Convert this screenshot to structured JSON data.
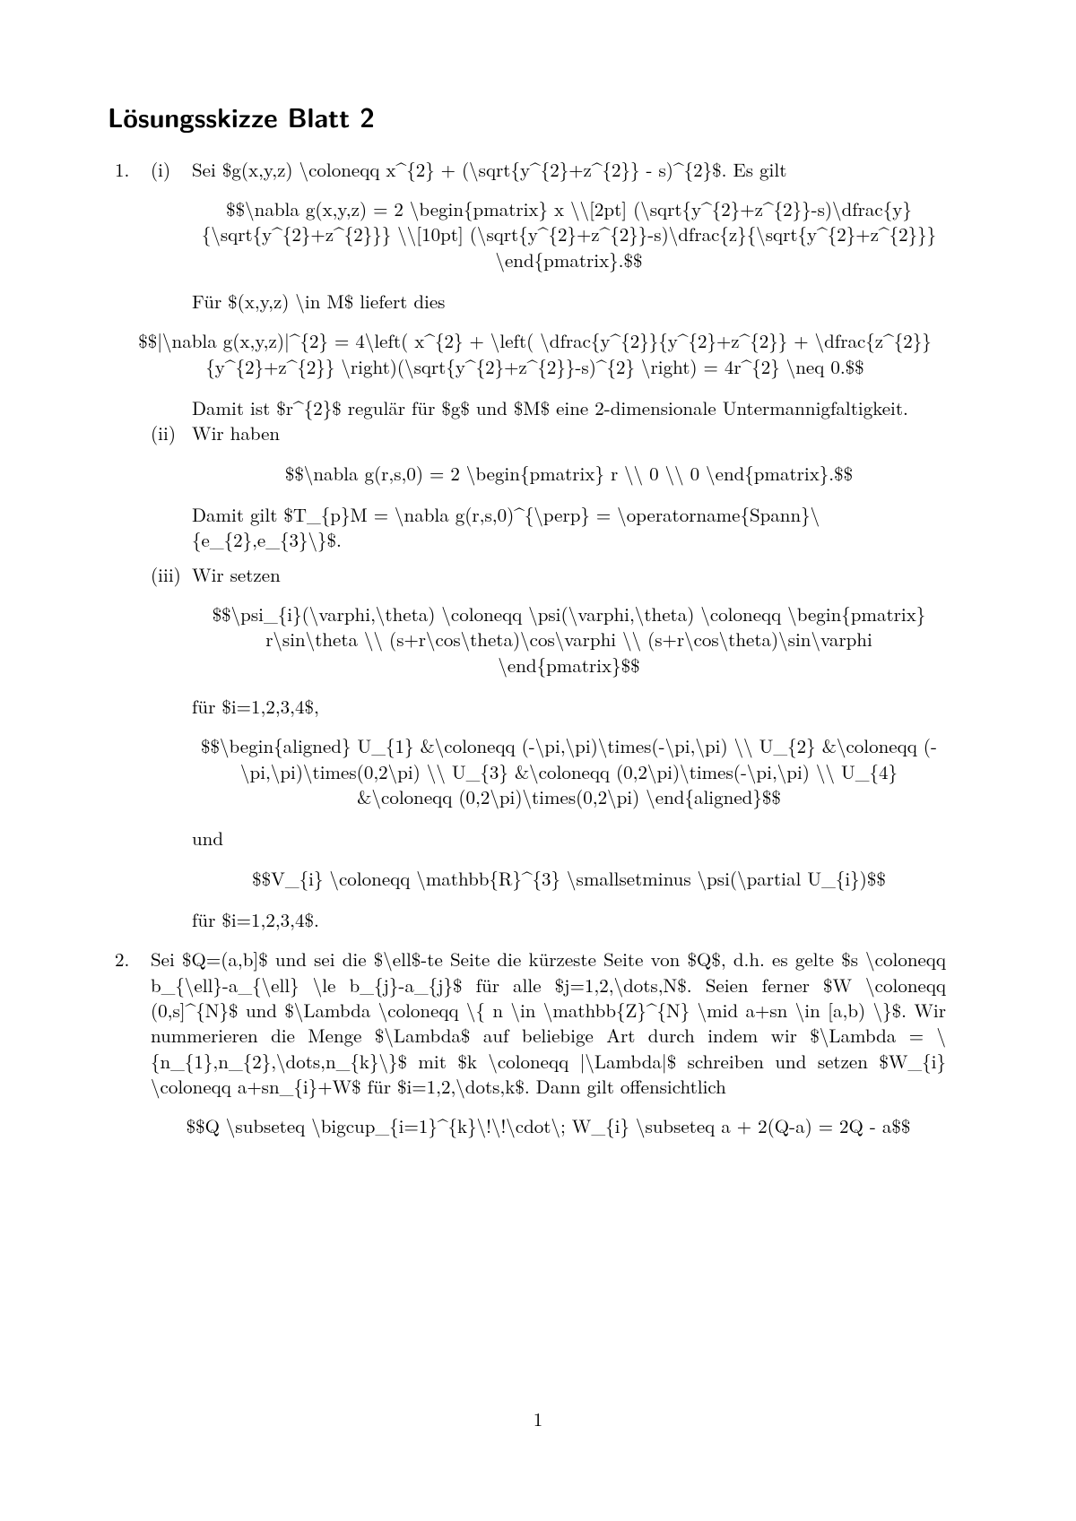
{
  "title": "Lösungsskizze Blatt 2",
  "page_number": "1",
  "colors": {
    "background": "#ffffff",
    "text": "#000000"
  },
  "typography": {
    "title_fontsize_pt": 17,
    "body_fontsize_pt": 12,
    "title_family": "sans-serif",
    "body_family": "serif"
  },
  "problems": [
    {
      "number": "1.",
      "parts": [
        {
          "label": "(i)",
          "intro": "Sei $g(x,y,z) \\coloneqq x^{2} + (\\sqrt{y^{2}+z^{2}} - s)^{2}$. Es gilt",
          "eq1": "$$\\nabla g(x,y,z) = 2 \\begin{pmatrix} x \\\\[2pt] (\\sqrt{y^{2}+z^{2}}-s)\\dfrac{y}{\\sqrt{y^{2}+z^{2}}} \\\\[10pt] (\\sqrt{y^{2}+z^{2}}-s)\\dfrac{z}{\\sqrt{y^{2}+z^{2}}} \\end{pmatrix}.$$",
          "line2": "Für $(x,y,z) \\in M$ liefert dies",
          "eq2": "$$|\\nabla g(x,y,z)|^{2} = 4\\left( x^{2} + \\left( \\dfrac{y^{2}}{y^{2}+z^{2}} + \\dfrac{z^{2}}{y^{2}+z^{2}} \\right)(\\sqrt{y^{2}+z^{2}}-s)^{2} \\right) = 4r^{2} \\neq 0.$$",
          "line3": "Damit ist $r^{2}$ regulär für $g$ und $M$ eine 2-dimensionale Untermannigfaltigkeit."
        },
        {
          "label": "(ii)",
          "intro": "Wir haben",
          "eq1": "$$\\nabla g(r,s,0) = 2 \\begin{pmatrix} r \\\\ 0 \\\\ 0 \\end{pmatrix}.$$",
          "line2": "Damit gilt $T_{p}M = \\nabla g(r,s,0)^{\\perp} = \\operatorname{Spann}\\{e_{2},e_{3}\\}$."
        },
        {
          "label": "(iii)",
          "intro": "Wir setzen",
          "eq1": "$$\\psi_{i}(\\varphi,\\theta) \\coloneqq \\psi(\\varphi,\\theta) \\coloneqq \\begin{pmatrix} r\\sin\\theta \\\\ (s+r\\cos\\theta)\\cos\\varphi \\\\ (s+r\\cos\\theta)\\sin\\varphi \\end{pmatrix}$$",
          "line2": "für $i=1,2,3,4$,",
          "eq2": "$$\\begin{aligned} U_{1} &\\coloneqq (-\\pi,\\pi)\\times(-\\pi,\\pi) \\\\ U_{2} &\\coloneqq (-\\pi,\\pi)\\times(0,2\\pi) \\\\ U_{3} &\\coloneqq (0,2\\pi)\\times(-\\pi,\\pi) \\\\ U_{4} &\\coloneqq (0,2\\pi)\\times(0,2\\pi) \\end{aligned}$$",
          "line3": "und",
          "eq3": "$$V_{i} \\coloneqq \\mathbb{R}^{3} \\smallsetminus \\psi(\\partial U_{i})$$",
          "line4": "für $i=1,2,3,4$."
        }
      ]
    },
    {
      "number": "2.",
      "body": "Sei $Q=(a,b]$ und sei die $\\ell$-te Seite die kürzeste Seite von $Q$, d.h. es gelte $s \\coloneqq b_{\\ell}-a_{\\ell} \\le b_{j}-a_{j}$ für alle $j=1,2,\\dots,N$. Seien ferner $W \\coloneqq (0,s]^{N}$ und $\\Lambda \\coloneqq \\{ n \\in \\mathbb{Z}^{N} \\mid a+sn \\in [a,b) \\}$. Wir nummerieren die Menge $\\Lambda$ auf beliebige Art durch indem wir $\\Lambda = \\{n_{1},n_{2},\\dots,n_{k}\\}$ mit $k \\coloneqq |\\Lambda|$ schreiben und setzen $W_{i} \\coloneqq a+sn_{i}+W$ für $i=1,2,\\dots,k$. Dann gilt offensichtlich",
      "eq1": "$$Q \\subseteq \\bigcup_{i=1}^{k}\\!\\!\\cdot\\; W_{i} \\subseteq a + 2(Q-a) = 2Q - a$$"
    }
  ]
}
